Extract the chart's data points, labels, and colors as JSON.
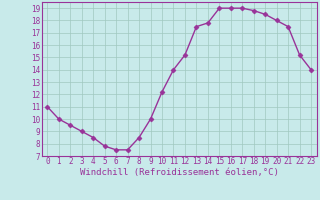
{
  "x": [
    0,
    1,
    2,
    3,
    4,
    5,
    6,
    7,
    8,
    9,
    10,
    11,
    12,
    13,
    14,
    15,
    16,
    17,
    18,
    19,
    20,
    21,
    22,
    23
  ],
  "y": [
    11,
    10,
    9.5,
    9,
    8.5,
    7.8,
    7.5,
    7.5,
    8.5,
    10,
    12.2,
    14,
    15.2,
    17.5,
    17.8,
    19.0,
    19.0,
    19.0,
    18.8,
    18.5,
    18.0,
    17.5,
    15.2,
    14.0
  ],
  "line_color": "#993399",
  "marker_color": "#993399",
  "bg_color": "#c8eaea",
  "plot_bg_color": "#c8eaea",
  "grid_color": "#a0c8c0",
  "xlabel": "Windchill (Refroidissement éolien,°C)",
  "xlim": [
    -0.5,
    23.5
  ],
  "ylim": [
    7,
    19.5
  ],
  "yticks": [
    7,
    8,
    9,
    10,
    11,
    12,
    13,
    14,
    15,
    16,
    17,
    18,
    19
  ],
  "xticks": [
    0,
    1,
    2,
    3,
    4,
    5,
    6,
    7,
    8,
    9,
    10,
    11,
    12,
    13,
    14,
    15,
    16,
    17,
    18,
    19,
    20,
    21,
    22,
    23
  ],
  "font_color": "#993399",
  "tick_label_size": 5.5,
  "xlabel_size": 6.5,
  "line_width": 1.0,
  "marker_size": 2.5
}
